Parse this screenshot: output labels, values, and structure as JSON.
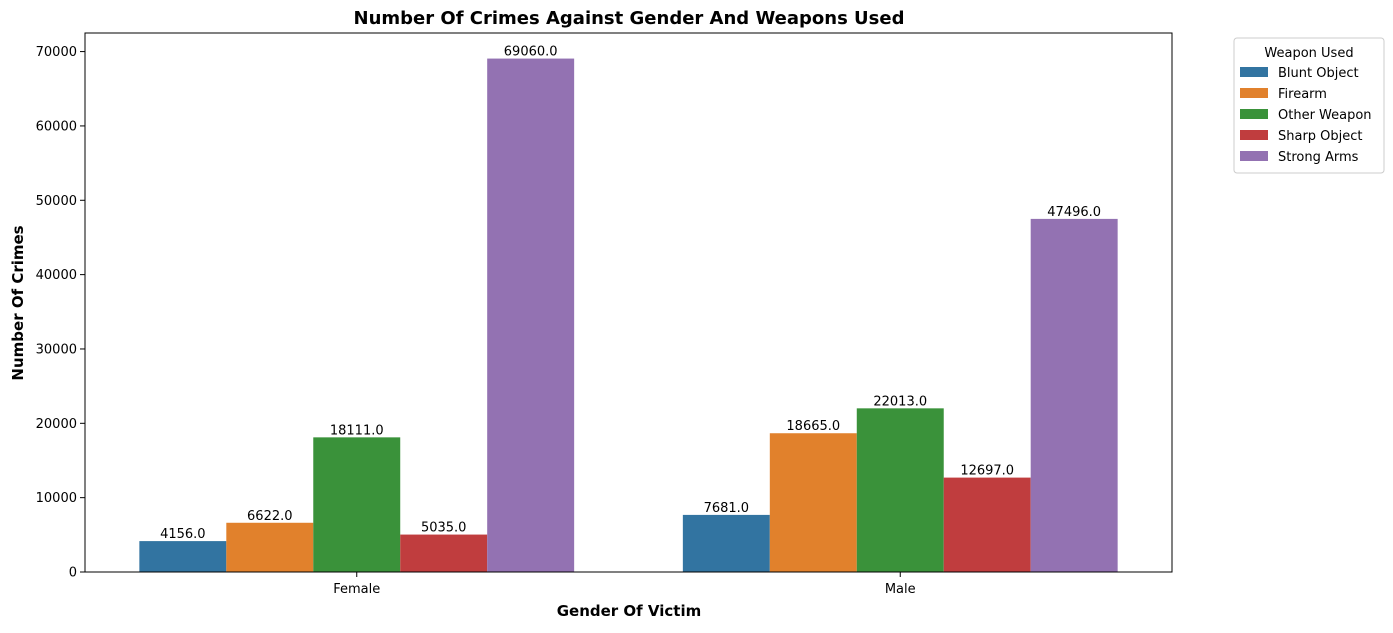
{
  "chart_data": {
    "type": "bar",
    "title": "Number Of Crimes Against Gender And Weapons Used",
    "xlabel": "Gender Of Victim",
    "ylabel": "Number Of Crimes",
    "categories": [
      "Female",
      "Male"
    ],
    "ylim": [
      0,
      72500
    ],
    "yticks": [
      0,
      10000,
      20000,
      30000,
      40000,
      50000,
      60000,
      70000
    ],
    "grid": false,
    "legend": {
      "title": "Weapon Used",
      "placement": "outside-right-top"
    },
    "series": [
      {
        "name": "Blunt Object",
        "color": "#3274a1",
        "values": [
          4156.0,
          7681.0
        ],
        "labels": [
          "4156.0",
          "7681.0"
        ]
      },
      {
        "name": "Firearm",
        "color": "#e1812c",
        "values": [
          6622.0,
          18665.0
        ],
        "labels": [
          "6622.0",
          "18665.0"
        ]
      },
      {
        "name": "Other Weapon",
        "color": "#3a923a",
        "values": [
          18111.0,
          22013.0
        ],
        "labels": [
          "18111.0",
          "22013.0"
        ]
      },
      {
        "name": "Sharp Object",
        "color": "#c03d3e",
        "values": [
          5035.0,
          12697.0
        ],
        "labels": [
          "5035.0",
          "12697.0"
        ]
      },
      {
        "name": "Strong Arms",
        "color": "#9372b2",
        "values": [
          69060.0,
          47496.0
        ],
        "labels": [
          "69060.0",
          "47496.0"
        ]
      }
    ]
  }
}
